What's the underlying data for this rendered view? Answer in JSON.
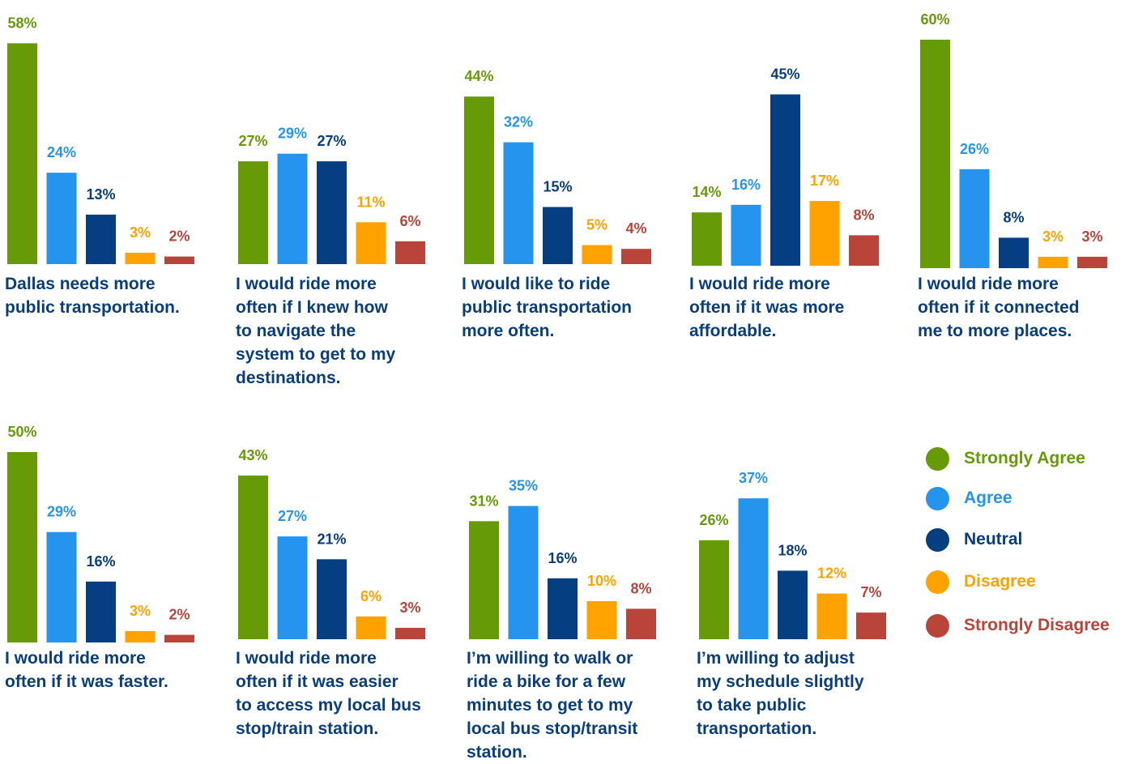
{
  "legend": {
    "items": [
      {
        "label": "Strongly Agree",
        "color": "#669a06"
      },
      {
        "label": "Agree",
        "color": "#2594ee"
      },
      {
        "label": "Neutral",
        "color": "#063e82"
      },
      {
        "label": "Disagree",
        "color": "#fea200"
      },
      {
        "label": "Strongly Disagree",
        "color": "#b8443a"
      }
    ]
  },
  "chart_data": [
    {
      "type": "bar",
      "title": "Dallas needs more\npublic transportation.",
      "categories": [
        "Strongly Agree",
        "Agree",
        "Neutral",
        "Disagree",
        "Strongly Disagree"
      ],
      "values": [
        58,
        24,
        13,
        3,
        2
      ],
      "data_labels": [
        "58%",
        "24%",
        "13%",
        "3%",
        "2%"
      ]
    },
    {
      "type": "bar",
      "title": "I would ride more\noften if I knew how\nto navigate the\nsystem to get to my\ndestinations.",
      "categories": [
        "Strongly Agree",
        "Agree",
        "Neutral",
        "Disagree",
        "Strongly Disagree"
      ],
      "values": [
        27,
        29,
        27,
        11,
        6
      ],
      "data_labels": [
        "27%",
        "29%",
        "27%",
        "11%",
        "6%"
      ]
    },
    {
      "type": "bar",
      "title": "I would like to ride\npublic transportation\nmore often.",
      "categories": [
        "Strongly Agree",
        "Agree",
        "Neutral",
        "Disagree",
        "Strongly Disagree"
      ],
      "values": [
        44,
        32,
        15,
        5,
        4
      ],
      "data_labels": [
        "44%",
        "32%",
        "15%",
        "5%",
        "4%"
      ]
    },
    {
      "type": "bar",
      "title": "I would ride more\noften if it was more\naffordable.",
      "categories": [
        "Strongly Agree",
        "Agree",
        "Neutral",
        "Disagree",
        "Strongly Disagree"
      ],
      "values": [
        14,
        16,
        45,
        17,
        8
      ],
      "data_labels": [
        "14%",
        "16%",
        "45%",
        "17%",
        "8%"
      ]
    },
    {
      "type": "bar",
      "title": "I would ride more\noften if it connected\nme to more places.",
      "categories": [
        "Strongly Agree",
        "Agree",
        "Neutral",
        "Disagree",
        "Strongly Disagree"
      ],
      "values": [
        60,
        26,
        8,
        3,
        3
      ],
      "data_labels": [
        "60%",
        "26%",
        "8%",
        "3%",
        "3%"
      ]
    },
    {
      "type": "bar",
      "title": "I would ride more\noften if it was faster.",
      "categories": [
        "Strongly Agree",
        "Agree",
        "Neutral",
        "Disagree",
        "Strongly Disagree"
      ],
      "values": [
        50,
        29,
        16,
        3,
        2
      ],
      "data_labels": [
        "50%",
        "29%",
        "16%",
        "3%",
        "2%"
      ]
    },
    {
      "type": "bar",
      "title": "I would ride more\noften if it was easier\nto access my local bus\nstop/train station.",
      "categories": [
        "Strongly Agree",
        "Agree",
        "Neutral",
        "Disagree",
        "Strongly Disagree"
      ],
      "values": [
        43,
        27,
        21,
        6,
        3
      ],
      "data_labels": [
        "43%",
        "27%",
        "21%",
        "6%",
        "3%"
      ]
    },
    {
      "type": "bar",
      "title": "I’m willing to walk or\nride a bike for a few\nminutes to get to my\nlocal bus stop/transit\nstation.",
      "categories": [
        "Strongly Agree",
        "Agree",
        "Neutral",
        "Disagree",
        "Strongly Disagree"
      ],
      "values": [
        31,
        35,
        16,
        10,
        8
      ],
      "data_labels": [
        "31%",
        "35%",
        "16%",
        "10%",
        "8%"
      ]
    },
    {
      "type": "bar",
      "title": "I’m willing to adjust\nmy schedule slightly\nto take public\ntransportation.",
      "categories": [
        "Strongly Agree",
        "Agree",
        "Neutral",
        "Disagree",
        "Strongly Disagree"
      ],
      "values": [
        26,
        37,
        18,
        12,
        7
      ],
      "data_labels": [
        "26%",
        "37%",
        "18%",
        "12%",
        "7%"
      ]
    }
  ]
}
